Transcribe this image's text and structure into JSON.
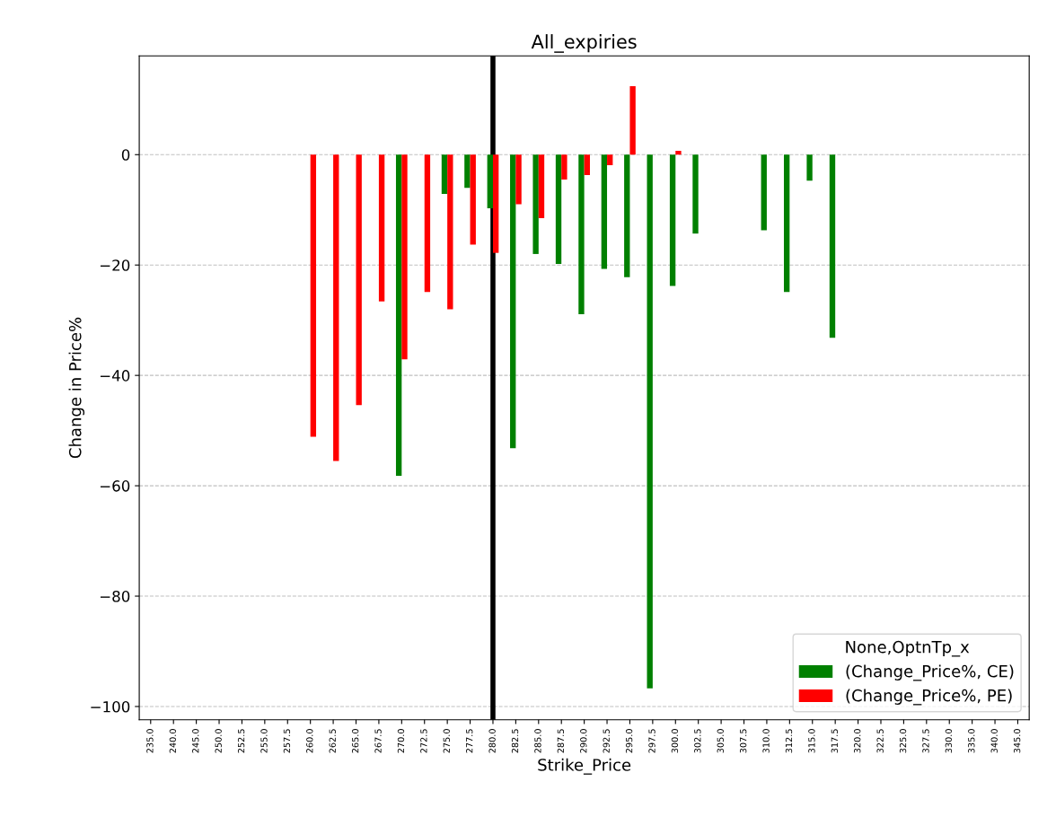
{
  "chart_data": {
    "type": "bar",
    "title": "All_expiries",
    "xlabel": "Strike_Price",
    "ylabel": "Change in Price%",
    "legend_title": "None,OptnTp_x",
    "categories": [
      "235.0",
      "240.0",
      "245.0",
      "250.0",
      "252.5",
      "255.0",
      "257.5",
      "260.0",
      "262.5",
      "265.0",
      "267.5",
      "270.0",
      "272.5",
      "275.0",
      "277.5",
      "280.0",
      "282.5",
      "285.0",
      "287.5",
      "290.0",
      "292.5",
      "295.0",
      "297.5",
      "300.0",
      "302.5",
      "305.0",
      "307.5",
      "310.0",
      "312.5",
      "315.0",
      "317.5",
      "320.0",
      "322.5",
      "325.0",
      "327.5",
      "330.0",
      "335.0",
      "340.0",
      "345.0"
    ],
    "series": [
      {
        "name": "(Change_Price%, CE)",
        "color": "#008000",
        "values": [
          null,
          null,
          null,
          null,
          null,
          null,
          null,
          null,
          null,
          null,
          null,
          -58.2,
          null,
          -7.1,
          -6.0,
          -9.7,
          -53.2,
          -18.0,
          -19.8,
          -28.9,
          -20.7,
          -22.2,
          -96.7,
          -23.8,
          -14.3,
          null,
          null,
          -13.7,
          -24.9,
          -4.7,
          -33.2,
          null,
          null,
          null,
          null,
          null,
          null,
          null,
          null
        ]
      },
      {
        "name": "(Change_Price%, PE)",
        "color": "#ff0000",
        "values": [
          null,
          null,
          null,
          null,
          null,
          null,
          null,
          -51.1,
          -55.5,
          -45.4,
          -26.6,
          -37.1,
          -24.9,
          -28.0,
          -16.3,
          -17.8,
          -9.0,
          -11.5,
          -4.5,
          -3.7,
          -1.9,
          12.4,
          null,
          0.7,
          null,
          null,
          null,
          null,
          null,
          null,
          null,
          null,
          null,
          null,
          null,
          null,
          null,
          null,
          null
        ]
      }
    ],
    "ylim": [
      -102.4,
      17.9
    ],
    "yticks": [
      -100,
      -80,
      -60,
      -40,
      -20,
      0
    ],
    "grid": "y",
    "legend": "bottom right",
    "ref_lines": [
      {
        "axis": "x",
        "value": "280.0",
        "color": "#000000",
        "line_style": "solid"
      }
    ]
  }
}
